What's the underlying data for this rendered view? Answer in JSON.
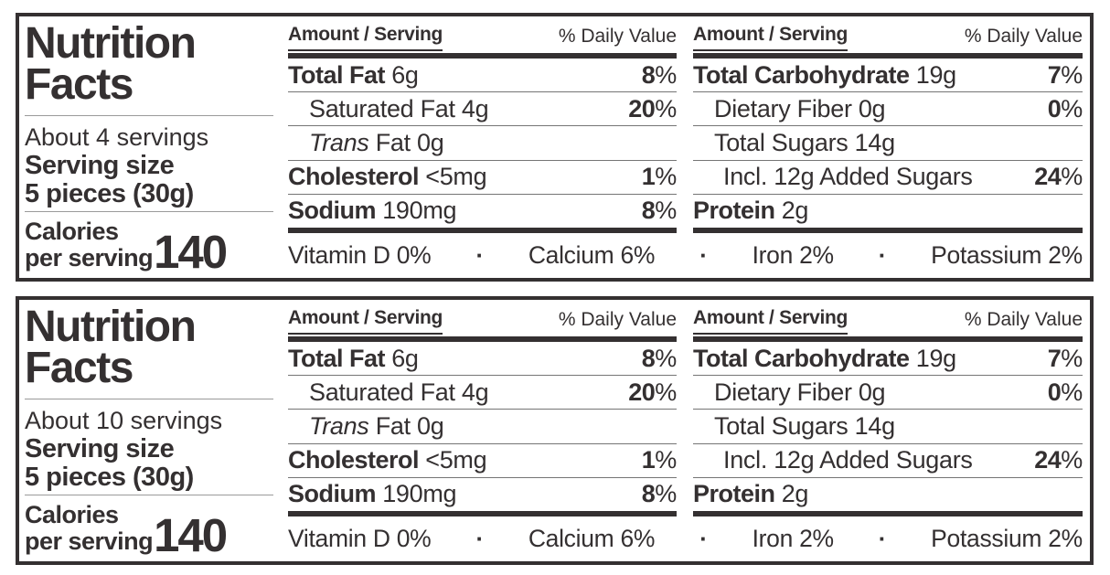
{
  "colors": {
    "ink": "#343031",
    "row_hairline": "#757575",
    "left_hairline": "#9a9a9a",
    "background": "#ffffff"
  },
  "shared": {
    "title_line1": "Nutrition",
    "title_line2": "Facts",
    "serving_size_label": "Serving size",
    "serving_size_value": "5 pieces (30g)",
    "calories_line1": "Calories",
    "calories_line2": "per serving",
    "calories_value": "140"
  },
  "panels": [
    {
      "servings": "About 4 servings"
    },
    {
      "servings": "About 10 servings"
    }
  ],
  "table": {
    "header_left": "Amount / Serving",
    "header_right": "% Daily Value",
    "percent_sign": "%",
    "separator": "·",
    "left_rows": [
      {
        "bold": "Total Fat",
        "text": " 6g",
        "dv": "8"
      },
      {
        "bold": "",
        "text": "Saturated Fat 4g",
        "dv": "20"
      },
      {
        "italic": "Trans",
        "text": " Fat 0g",
        "dv": ""
      },
      {
        "bold": "Cholesterol",
        "text": " <5mg",
        "dv": "1"
      },
      {
        "bold": "Sodium",
        "text": " 190mg",
        "dv": "8"
      }
    ],
    "right_rows": [
      {
        "bold": "Total Carbohydrate",
        "text": " 19g",
        "dv": "7"
      },
      {
        "bold": "",
        "text": "Dietary Fiber 0g",
        "dv": "0"
      },
      {
        "bold": "",
        "text": "Total Sugars 14g",
        "dv": ""
      },
      {
        "bold": "",
        "text": "Incl. 12g Added Sugars",
        "dv": "24"
      },
      {
        "bold": "Protein",
        "text": " 2g",
        "dv": ""
      }
    ],
    "footer_items": [
      "Vitamin D 0%",
      "Calcium 6%",
      "Iron 2%",
      "Potassium 2%"
    ]
  }
}
